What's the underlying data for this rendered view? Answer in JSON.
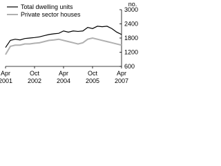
{
  "chart_data": {
    "type": "line",
    "x": [
      "2001-04",
      "2001-07",
      "2001-10",
      "2002-01",
      "2002-04",
      "2002-07",
      "2002-10",
      "2003-01",
      "2003-04",
      "2003-07",
      "2003-10",
      "2004-01",
      "2004-04",
      "2004-07",
      "2004-10",
      "2005-01",
      "2005-04",
      "2005-07",
      "2005-10",
      "2006-01",
      "2006-04",
      "2006-07",
      "2006-10",
      "2007-01",
      "2007-04"
    ],
    "series": [
      {
        "name": "Total dwelling units",
        "color": "#000000",
        "values": [
          1400,
          1700,
          1750,
          1720,
          1780,
          1800,
          1820,
          1850,
          1900,
          1950,
          1980,
          2000,
          2100,
          2050,
          2100,
          2080,
          2100,
          2250,
          2200,
          2300,
          2280,
          2300,
          2200,
          2050,
          1950
        ]
      },
      {
        "name": "Private sector houses",
        "color": "#b0b0b0",
        "values": [
          1100,
          1450,
          1500,
          1500,
          1550,
          1550,
          1580,
          1600,
          1650,
          1700,
          1720,
          1750,
          1700,
          1650,
          1600,
          1550,
          1600,
          1750,
          1800,
          1750,
          1700,
          1650,
          1600,
          1550,
          1500
        ]
      }
    ],
    "y_label": "no.",
    "ylim": [
      600,
      3000
    ],
    "yticks": [
      600,
      1200,
      1800,
      2400,
      3000
    ],
    "xlim": [
      "2001-04",
      "2007-04"
    ],
    "xticks": [
      {
        "value": "2001-04",
        "label": "Apr 2001"
      },
      {
        "value": "2002-10",
        "label": "Oct 2002"
      },
      {
        "value": "2004-04",
        "label": "Apr 2004"
      },
      {
        "value": "2005-10",
        "label": "Oct 2005"
      },
      {
        "value": "2007-04",
        "label": "Apr 2007"
      }
    ]
  }
}
